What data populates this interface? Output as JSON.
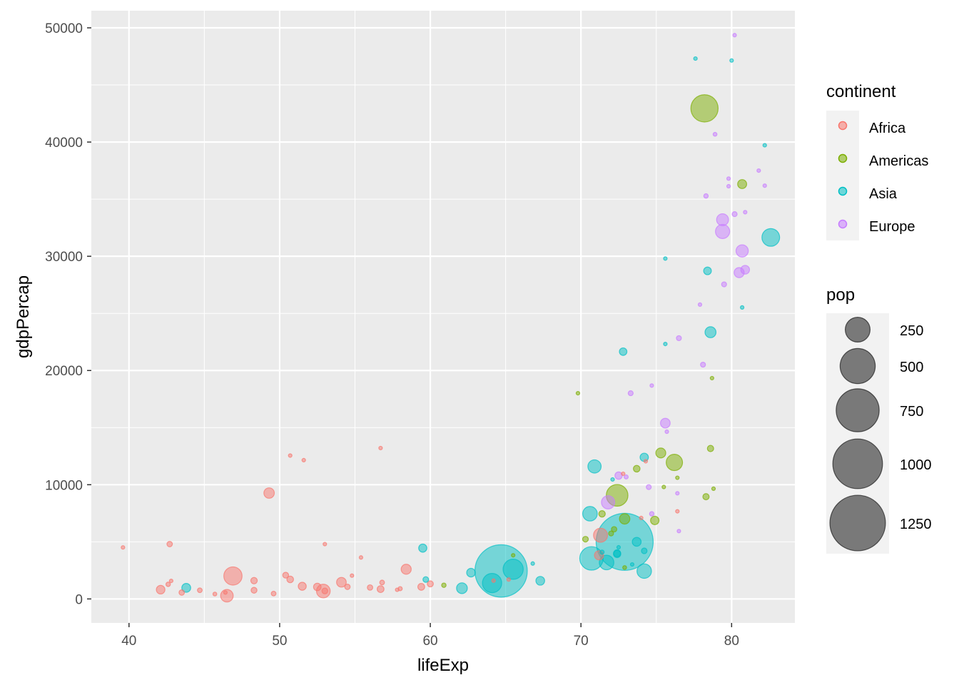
{
  "chart_data": {
    "type": "scatter",
    "xlabel": "lifeExp",
    "ylabel": "gdpPercap",
    "xlim": [
      37.5,
      84.2
    ],
    "ylim": [
      -2100,
      51500
    ],
    "x_ticks": [
      40,
      50,
      60,
      70,
      80
    ],
    "y_ticks": [
      0,
      10000,
      20000,
      30000,
      40000,
      50000
    ],
    "x_tick_labels": [
      "40",
      "50",
      "60",
      "70",
      "80"
    ],
    "y_tick_labels": [
      "0",
      "10000",
      "20000",
      "30000",
      "40000",
      "50000"
    ],
    "grid": true,
    "background": "#ebebeb",
    "legend_position": "right",
    "size_var": "pop",
    "size_unit_note": "pop in millions",
    "colors": {
      "Africa": "#f8766d",
      "Americas": "#7cae00",
      "Asia": "#00bfc4",
      "Europe": "#c77cff"
    },
    "legends": {
      "color": {
        "title": "continent",
        "entries": [
          "Africa",
          "Americas",
          "Asia",
          "Europe"
        ]
      },
      "size": {
        "title": "pop",
        "entries": [
          {
            "label": "250",
            "value": 250
          },
          {
            "label": "500",
            "value": 500
          },
          {
            "label": "750",
            "value": 750
          },
          {
            "label": "1000",
            "value": 1000
          },
          {
            "label": "1250",
            "value": 1250
          }
        ]
      }
    },
    "points": [
      {
        "continent": "Asia",
        "x": 72.9,
        "y": 5000,
        "pop": 1319
      },
      {
        "continent": "Asia",
        "x": 64.7,
        "y": 2450,
        "pop": 1110
      },
      {
        "continent": "Americas",
        "x": 78.2,
        "y": 42950,
        "pop": 301
      },
      {
        "continent": "Asia",
        "x": 70.7,
        "y": 3550,
        "pop": 224
      },
      {
        "continent": "Americas",
        "x": 72.4,
        "y": 9070,
        "pop": 190
      },
      {
        "continent": "Asia",
        "x": 65.5,
        "y": 2600,
        "pop": 165
      },
      {
        "continent": "Asia",
        "x": 64.1,
        "y": 1390,
        "pop": 150
      },
      {
        "continent": "Africa",
        "x": 46.9,
        "y": 2010,
        "pop": 135
      },
      {
        "continent": "Asia",
        "x": 82.6,
        "y": 31650,
        "pop": 127
      },
      {
        "continent": "Americas",
        "x": 76.2,
        "y": 11950,
        "pop": 108
      },
      {
        "continent": "Asia",
        "x": 71.7,
        "y": 3190,
        "pop": 86
      },
      {
        "continent": "Europe",
        "x": 79.4,
        "y": 32170,
        "pop": 82
      },
      {
        "continent": "Asia",
        "x": 70.6,
        "y": 7460,
        "pop": 86
      },
      {
        "continent": "Africa",
        "x": 71.3,
        "y": 5580,
        "pop": 80
      },
      {
        "continent": "Asia",
        "x": 74.2,
        "y": 2440,
        "pop": 85
      },
      {
        "continent": "Africa",
        "x": 52.9,
        "y": 690,
        "pop": 76
      },
      {
        "continent": "Europe",
        "x": 71.8,
        "y": 8460,
        "pop": 71
      },
      {
        "continent": "Asia",
        "x": 70.9,
        "y": 11600,
        "pop": 71
      },
      {
        "continent": "Europe",
        "x": 80.7,
        "y": 30470,
        "pop": 61
      },
      {
        "continent": "Europe",
        "x": 79.4,
        "y": 33200,
        "pop": 58
      },
      {
        "continent": "Africa",
        "x": 46.5,
        "y": 280,
        "pop": 64
      },
      {
        "continent": "Asia",
        "x": 62.1,
        "y": 940,
        "pop": 47
      },
      {
        "continent": "Asia",
        "x": 78.6,
        "y": 23350,
        "pop": 49
      },
      {
        "continent": "Africa",
        "x": 49.3,
        "y": 9270,
        "pop": 44
      },
      {
        "continent": "Africa",
        "x": 58.4,
        "y": 2600,
        "pop": 41
      },
      {
        "continent": "Europe",
        "x": 75.6,
        "y": 15390,
        "pop": 38
      },
      {
        "continent": "Americas",
        "x": 75.3,
        "y": 12780,
        "pop": 40
      },
      {
        "continent": "Africa",
        "x": 54.1,
        "y": 1460,
        "pop": 38
      },
      {
        "continent": "Americas",
        "x": 72.9,
        "y": 7010,
        "pop": 44
      },
      {
        "continent": "Europe",
        "x": 80.5,
        "y": 28570,
        "pop": 41
      },
      {
        "continent": "Asia",
        "x": 67.3,
        "y": 1590,
        "pop": 31
      },
      {
        "continent": "Asia",
        "x": 62.7,
        "y": 2300,
        "pop": 30
      },
      {
        "continent": "Africa",
        "x": 42.1,
        "y": 810,
        "pop": 30
      },
      {
        "continent": "Americas",
        "x": 80.7,
        "y": 36320,
        "pop": 33
      },
      {
        "continent": "Asia",
        "x": 59.5,
        "y": 4450,
        "pop": 27
      },
      {
        "continent": "Europe",
        "x": 80.9,
        "y": 28820,
        "pop": 31
      },
      {
        "continent": "Asia",
        "x": 72.8,
        "y": 21650,
        "pop": 23
      },
      {
        "continent": "Asia",
        "x": 74.2,
        "y": 12400,
        "pop": 28
      },
      {
        "continent": "Asia",
        "x": 73.7,
        "y": 5000,
        "pop": 32
      },
      {
        "continent": "Americas",
        "x": 74.9,
        "y": 6870,
        "pop": 29
      },
      {
        "continent": "Asia",
        "x": 78.4,
        "y": 28720,
        "pop": 24
      },
      {
        "continent": "Asia",
        "x": 43.8,
        "y": 970,
        "pop": 32
      },
      {
        "continent": "Africa",
        "x": 52.5,
        "y": 1050,
        "pop": 23
      },
      {
        "continent": "Africa",
        "x": 51.5,
        "y": 1110,
        "pop": 26
      },
      {
        "continent": "Africa",
        "x": 48.3,
        "y": 1600,
        "pop": 17
      },
      {
        "continent": "Africa",
        "x": 56.7,
        "y": 860,
        "pop": 19
      },
      {
        "continent": "Africa",
        "x": 71.2,
        "y": 3820,
        "pop": 34
      },
      {
        "continent": "Asia",
        "x": 72.4,
        "y": 4000,
        "pop": 20
      },
      {
        "continent": "Europe",
        "x": 72.5,
        "y": 10800,
        "pop": 22
      },
      {
        "continent": "Americas",
        "x": 73.7,
        "y": 11400,
        "pop": 18
      },
      {
        "continent": "Americas",
        "x": 71.4,
        "y": 7450,
        "pop": 17
      },
      {
        "continent": "Americas",
        "x": 72.2,
        "y": 6100,
        "pop": 12
      },
      {
        "continent": "Africa",
        "x": 59.4,
        "y": 1060,
        "pop": 19
      },
      {
        "continent": "Africa",
        "x": 60.0,
        "y": 1320,
        "pop": 15
      },
      {
        "continent": "Africa",
        "x": 50.4,
        "y": 2080,
        "pop": 14
      },
      {
        "continent": "Africa",
        "x": 48.3,
        "y": 760,
        "pop": 14
      },
      {
        "continent": "Africa",
        "x": 43.5,
        "y": 560,
        "pop": 12
      },
      {
        "continent": "Africa",
        "x": 56.0,
        "y": 1000,
        "pop": 12
      },
      {
        "continent": "Africa",
        "x": 53.0,
        "y": 700,
        "pop": 14
      },
      {
        "continent": "Americas",
        "x": 70.3,
        "y": 5230,
        "pop": 13
      },
      {
        "continent": "Americas",
        "x": 78.3,
        "y": 8950,
        "pop": 16
      },
      {
        "continent": "Europe",
        "x": 78.9,
        "y": 40680,
        "pop": 6
      },
      {
        "continent": "Europe",
        "x": 80.2,
        "y": 33690,
        "pop": 10
      },
      {
        "continent": "Europe",
        "x": 79.5,
        "y": 27540,
        "pop": 10
      },
      {
        "continent": "Europe",
        "x": 76.5,
        "y": 22830,
        "pop": 10
      },
      {
        "continent": "Europe",
        "x": 78.1,
        "y": 20510,
        "pop": 10
      },
      {
        "continent": "Europe",
        "x": 73.3,
        "y": 18010,
        "pop": 10
      },
      {
        "continent": "Europe",
        "x": 74.7,
        "y": 7450,
        "pop": 8
      },
      {
        "continent": "Europe",
        "x": 74.5,
        "y": 9790,
        "pop": 10
      },
      {
        "continent": "Europe",
        "x": 76.5,
        "y": 5940,
        "pop": 3
      },
      {
        "continent": "Europe",
        "x": 79.8,
        "y": 36800,
        "pop": 5
      },
      {
        "continent": "Europe",
        "x": 80.9,
        "y": 33860,
        "pop": 5
      },
      {
        "continent": "Europe",
        "x": 81.8,
        "y": 37500,
        "pop": 5
      },
      {
        "continent": "Europe",
        "x": 78.3,
        "y": 35280,
        "pop": 8
      },
      {
        "continent": "Asia",
        "x": 71.4,
        "y": 4100,
        "pop": 7
      },
      {
        "continent": "Africa",
        "x": 42.6,
        "y": 1280,
        "pop": 8
      },
      {
        "continent": "Africa",
        "x": 44.7,
        "y": 760,
        "pop": 9
      },
      {
        "continent": "Africa",
        "x": 42.7,
        "y": 4800,
        "pop": 12
      },
      {
        "continent": "Africa",
        "x": 50.7,
        "y": 1710,
        "pop": 18
      },
      {
        "continent": "Africa",
        "x": 45.7,
        "y": 430,
        "pop": 6
      },
      {
        "continent": "Africa",
        "x": 49.6,
        "y": 470,
        "pop": 9
      },
      {
        "continent": "Africa",
        "x": 54.5,
        "y": 1060,
        "pop": 12
      },
      {
        "continent": "Africa",
        "x": 58.0,
        "y": 900,
        "pop": 7
      },
      {
        "continent": "Africa",
        "x": 54.8,
        "y": 2040,
        "pop": 3
      },
      {
        "continent": "Africa",
        "x": 56.8,
        "y": 1440,
        "pop": 9
      },
      {
        "continent": "Africa",
        "x": 65.2,
        "y": 1700,
        "pop": 5
      },
      {
        "continent": "Africa",
        "x": 64.2,
        "y": 1600,
        "pop": 4
      },
      {
        "continent": "Africa",
        "x": 57.8,
        "y": 800,
        "pop": 5
      },
      {
        "continent": "Africa",
        "x": 39.6,
        "y": 4510,
        "pop": 2
      },
      {
        "continent": "Africa",
        "x": 50.7,
        "y": 12550,
        "pop": 1
      },
      {
        "continent": "Africa",
        "x": 51.6,
        "y": 12150,
        "pop": 1
      },
      {
        "continent": "Africa",
        "x": 56.7,
        "y": 13210,
        "pop": 2
      },
      {
        "continent": "Africa",
        "x": 53.0,
        "y": 4800,
        "pop": 2
      },
      {
        "continent": "Africa",
        "x": 55.4,
        "y": 3630,
        "pop": 3
      },
      {
        "continent": "Africa",
        "x": 46.4,
        "y": 560,
        "pop": 5
      },
      {
        "continent": "Africa",
        "x": 42.8,
        "y": 1580,
        "pop": 2
      },
      {
        "continent": "Africa",
        "x": 74.0,
        "y": 7090,
        "pop": 4
      },
      {
        "continent": "Africa",
        "x": 74.3,
        "y": 12050,
        "pop": 1
      },
      {
        "continent": "Africa",
        "x": 76.4,
        "y": 7670,
        "pop": 1
      },
      {
        "continent": "Africa",
        "x": 72.8,
        "y": 10960,
        "pop": 1
      },
      {
        "continent": "Americas",
        "x": 60.9,
        "y": 1200,
        "pop": 8
      },
      {
        "continent": "Americas",
        "x": 69.8,
        "y": 18010,
        "pop": 1
      },
      {
        "continent": "Americas",
        "x": 65.5,
        "y": 3820,
        "pop": 5
      },
      {
        "continent": "Americas",
        "x": 72.9,
        "y": 2750,
        "pop": 6
      },
      {
        "continent": "Americas",
        "x": 75.5,
        "y": 9800,
        "pop": 3
      },
      {
        "continent": "Americas",
        "x": 76.4,
        "y": 10610,
        "pop": 3
      },
      {
        "continent": "Americas",
        "x": 78.7,
        "y": 19330,
        "pop": 3
      },
      {
        "continent": "Americas",
        "x": 78.8,
        "y": 9650,
        "pop": 4
      },
      {
        "continent": "Americas",
        "x": 72.0,
        "y": 5730,
        "pop": 10
      },
      {
        "continent": "Americas",
        "x": 78.6,
        "y": 13170,
        "pop": 16
      },
      {
        "continent": "Asia",
        "x": 77.6,
        "y": 47310,
        "pop": 1
      },
      {
        "continent": "Asia",
        "x": 80.0,
        "y": 47140,
        "pop": 4
      },
      {
        "continent": "Asia",
        "x": 82.2,
        "y": 39720,
        "pop": 4
      },
      {
        "continent": "Asia",
        "x": 75.6,
        "y": 29800,
        "pop": 1
      },
      {
        "continent": "Asia",
        "x": 80.7,
        "y": 25520,
        "pop": 3
      },
      {
        "continent": "Asia",
        "x": 75.6,
        "y": 22320,
        "pop": 2
      },
      {
        "continent": "Asia",
        "x": 72.1,
        "y": 10460,
        "pop": 2
      },
      {
        "continent": "Asia",
        "x": 66.8,
        "y": 3100,
        "pop": 3
      },
      {
        "continent": "Asia",
        "x": 59.7,
        "y": 1700,
        "pop": 13
      },
      {
        "continent": "Asia",
        "x": 72.5,
        "y": 4520,
        "pop": 5
      },
      {
        "continent": "Asia",
        "x": 73.4,
        "y": 3020,
        "pop": 4
      },
      {
        "continent": "Asia",
        "x": 74.2,
        "y": 4210,
        "pop": 13
      },
      {
        "continent": "Asia",
        "x": 72.4,
        "y": 3940,
        "pop": 22
      },
      {
        "continent": "Europe",
        "x": 79.8,
        "y": 36130,
        "pop": 4
      },
      {
        "continent": "Europe",
        "x": 77.9,
        "y": 25770,
        "pop": 2
      },
      {
        "continent": "Europe",
        "x": 75.7,
        "y": 14640,
        "pop": 5
      },
      {
        "continent": "Europe",
        "x": 74.7,
        "y": 18680,
        "pop": 5
      },
      {
        "continent": "Europe",
        "x": 80.2,
        "y": 49360,
        "pop": 4
      },
      {
        "continent": "Europe",
        "x": 82.2,
        "y": 36180,
        "pop": 0.3
      },
      {
        "continent": "Europe",
        "x": 73.0,
        "y": 10680,
        "pop": 7
      },
      {
        "continent": "Europe",
        "x": 76.4,
        "y": 9250,
        "pop": 1
      }
    ]
  }
}
